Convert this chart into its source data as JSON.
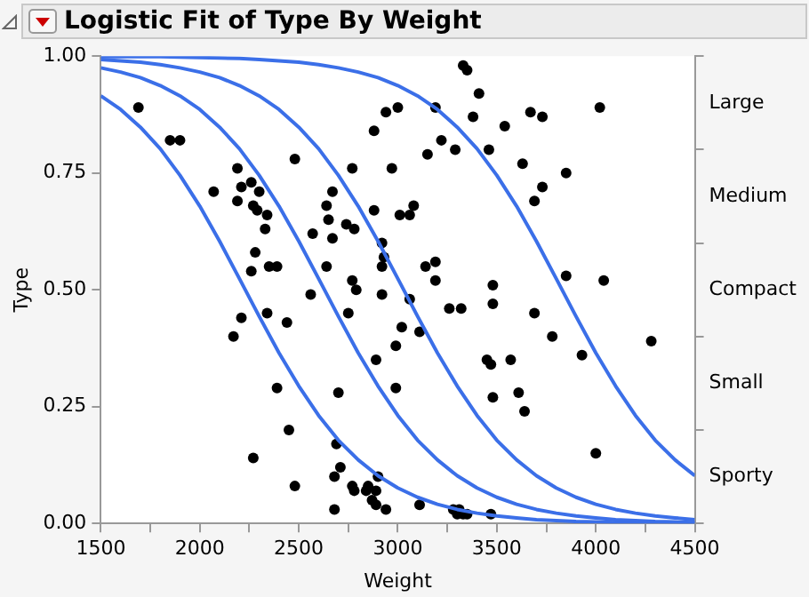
{
  "chart_data": {
    "type": "scatter",
    "title": "Logistic Fit of Type By Weight",
    "xlabel": "Weight",
    "ylabel": "Type",
    "xlim": [
      1500,
      4500
    ],
    "xticks": [
      1500,
      {
        "value": 1750,
        "label": null
      },
      2000,
      {
        "value": 2250,
        "label": null
      },
      2500,
      {
        "value": 2750,
        "label": null
      },
      3000,
      {
        "value": 3250,
        "label": null
      },
      3500,
      {
        "value": 3750,
        "label": null
      },
      4000,
      {
        "value": 4250,
        "label": null
      },
      4500
    ],
    "ylim": [
      0,
      1
    ],
    "yticks": [
      {
        "value": 0,
        "label": "0.00"
      },
      {
        "value": 0.25,
        "label": "0.25"
      },
      {
        "value": 0.5,
        "label": "0.50"
      },
      {
        "value": 0.75,
        "label": "0.75"
      },
      {
        "value": 1,
        "label": "1.00"
      }
    ],
    "y2_categories": [
      "Large",
      "Medium",
      "Compact",
      "Small",
      "Sporty"
    ],
    "grid": false,
    "legend": false,
    "series": [
      {
        "type": "line",
        "marker": "none",
        "color": "#3b6fe8",
        "x": [
          1500,
          1600,
          1700,
          1800,
          1900,
          2000,
          2100,
          2200,
          2300,
          2400,
          2500,
          2600,
          2700,
          2800,
          2900,
          3000,
          3100,
          3200,
          3300,
          3400,
          3500,
          3600,
          3700,
          3800,
          3900,
          4000,
          4100,
          4200,
          4300,
          4400,
          4500
        ],
        "values": [
          0.915,
          0.886,
          0.848,
          0.802,
          0.745,
          0.679,
          0.604,
          0.524,
          0.443,
          0.365,
          0.294,
          0.231,
          0.178,
          0.136,
          0.102,
          0.076,
          0.056,
          0.041,
          0.03,
          0.022,
          0.016,
          0.012,
          0.008,
          0.006,
          0.004,
          0.003,
          0.002,
          0.002,
          0.001,
          0.001,
          0.001
        ]
      },
      {
        "type": "line",
        "marker": "none",
        "color": "#3b6fe8",
        "x": [
          1500,
          1600,
          1700,
          1800,
          1900,
          2000,
          2100,
          2200,
          2300,
          2400,
          2500,
          2600,
          2700,
          2800,
          2900,
          3000,
          3100,
          3200,
          3300,
          3400,
          3500,
          3600,
          3700,
          3800,
          3900,
          4000,
          4100,
          4200,
          4300,
          4400,
          4500
        ],
        "values": [
          0.975,
          0.966,
          0.954,
          0.937,
          0.915,
          0.886,
          0.848,
          0.802,
          0.745,
          0.679,
          0.604,
          0.524,
          0.443,
          0.365,
          0.294,
          0.231,
          0.178,
          0.136,
          0.102,
          0.076,
          0.056,
          0.041,
          0.03,
          0.022,
          0.016,
          0.012,
          0.008,
          0.006,
          0.004,
          0.003,
          0.002
        ]
      },
      {
        "type": "line",
        "marker": "none",
        "color": "#3b6fe8",
        "x": [
          1500,
          1600,
          1700,
          1800,
          1900,
          2000,
          2100,
          2200,
          2300,
          2400,
          2500,
          2600,
          2700,
          2800,
          2900,
          3000,
          3100,
          3200,
          3300,
          3400,
          3500,
          3600,
          3700,
          3800,
          3900,
          4000,
          4100,
          4200,
          4300,
          4400,
          4500
        ],
        "values": [
          0.993,
          0.99,
          0.987,
          0.982,
          0.975,
          0.966,
          0.954,
          0.937,
          0.915,
          0.886,
          0.848,
          0.802,
          0.745,
          0.679,
          0.604,
          0.524,
          0.443,
          0.365,
          0.294,
          0.231,
          0.178,
          0.136,
          0.102,
          0.076,
          0.056,
          0.041,
          0.03,
          0.022,
          0.016,
          0.012,
          0.008
        ]
      },
      {
        "type": "line",
        "marker": "none",
        "color": "#3b6fe8",
        "x": [
          1500,
          1600,
          1700,
          1800,
          1900,
          2000,
          2100,
          2200,
          2300,
          2400,
          2500,
          2600,
          2700,
          2800,
          2900,
          3000,
          3100,
          3200,
          3300,
          3400,
          3500,
          3600,
          3700,
          3800,
          3900,
          4000,
          4100,
          4200,
          4300,
          4400,
          4500
        ],
        "values": [
          0.999,
          0.999,
          0.999,
          0.999,
          0.998,
          0.997,
          0.996,
          0.995,
          0.993,
          0.99,
          0.987,
          0.982,
          0.975,
          0.966,
          0.954,
          0.937,
          0.915,
          0.886,
          0.848,
          0.802,
          0.745,
          0.679,
          0.604,
          0.524,
          0.443,
          0.365,
          0.294,
          0.231,
          0.178,
          0.136,
          0.102
        ]
      },
      {
        "marker": "circle",
        "color": "#000000",
        "x": [
          1690,
          1850,
          1900,
          2070,
          2190,
          2190,
          2210,
          2260,
          2300,
          2270,
          2290,
          2340,
          2330,
          2280,
          2260,
          2350,
          2390,
          2480,
          2570,
          2640,
          2670,
          2650,
          2670,
          2640,
          2770,
          2740,
          2780,
          2770,
          2790,
          2560,
          2880,
          2940,
          3000,
          2970,
          2880,
          3010,
          3060,
          3080,
          2920,
          2930,
          2920,
          2920,
          3060,
          3150,
          3190,
          3220,
          3140,
          3190,
          3190,
          2210,
          2340,
          2750,
          3330,
          3350,
          3410,
          3380,
          3540,
          3670,
          3730,
          4020,
          3290,
          3460,
          3630,
          3850,
          3730,
          3690,
          3480,
          3850,
          4040,
          3260,
          3320,
          3480,
          3690,
          2990,
          3020,
          3110,
          3780,
          4280,
          3450,
          3470,
          3570,
          3930,
          2990,
          3480,
          3610,
          3640,
          4000,
          3110,
          3280,
          3310,
          3300,
          3330,
          3350,
          3470,
          2170,
          2440,
          2890,
          2390,
          2700,
          2450,
          2270,
          2480,
          2690,
          2710,
          2680,
          2770,
          2780,
          2840,
          2900,
          2850,
          2890,
          2870,
          2890,
          2940,
          2680
        ],
        "values": [
          0.89,
          0.82,
          0.82,
          0.71,
          0.76,
          0.69,
          0.72,
          0.73,
          0.71,
          0.68,
          0.67,
          0.66,
          0.63,
          0.58,
          0.54,
          0.55,
          0.55,
          0.78,
          0.62,
          0.68,
          0.71,
          0.65,
          0.61,
          0.55,
          0.76,
          0.64,
          0.63,
          0.52,
          0.5,
          0.49,
          0.84,
          0.88,
          0.89,
          0.76,
          0.67,
          0.66,
          0.66,
          0.68,
          0.6,
          0.57,
          0.55,
          0.49,
          0.48,
          0.79,
          0.89,
          0.82,
          0.55,
          0.56,
          0.52,
          0.44,
          0.45,
          0.45,
          0.98,
          0.97,
          0.92,
          0.87,
          0.85,
          0.88,
          0.87,
          0.89,
          0.8,
          0.8,
          0.77,
          0.75,
          0.72,
          0.69,
          0.51,
          0.53,
          0.52,
          0.46,
          0.46,
          0.47,
          0.45,
          0.38,
          0.42,
          0.41,
          0.4,
          0.39,
          0.35,
          0.34,
          0.35,
          0.36,
          0.29,
          0.27,
          0.28,
          0.24,
          0.15,
          0.04,
          0.03,
          0.03,
          0.02,
          0.02,
          0.02,
          0.02,
          0.4,
          0.43,
          0.35,
          0.29,
          0.28,
          0.2,
          0.14,
          0.08,
          0.17,
          0.12,
          0.1,
          0.08,
          0.07,
          0.07,
          0.1,
          0.08,
          0.07,
          0.05,
          0.04,
          0.03,
          0.03
        ]
      }
    ]
  }
}
